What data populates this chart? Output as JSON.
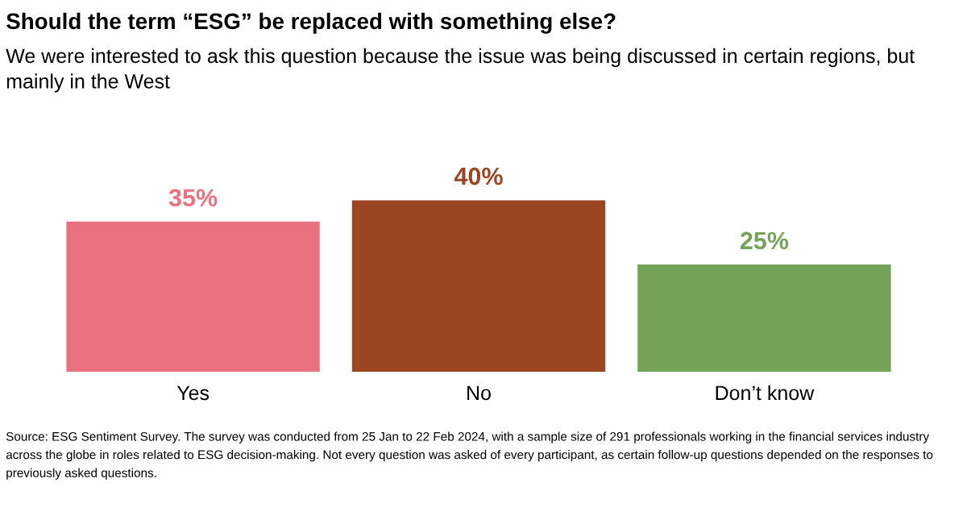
{
  "chart_data": {
    "type": "bar",
    "title": "Should the term “ESG” be replaced with something else?",
    "subtitle": "We were interested to ask this question because the issue was being discussed in certain regions, but mainly in the West",
    "categories": [
      "Yes",
      "No",
      "Don’t know"
    ],
    "values": [
      35,
      40,
      25
    ],
    "colors": [
      "#e8707f",
      "#9a4623",
      "#74a257"
    ],
    "value_labels": [
      "35%",
      "40%",
      "25%"
    ],
    "annotations": [
      "Source: ESG Sentiment Survey. The survey was conducted from 25 Jan to 22 Feb 2024, with a sample size of 291 professionals working in the financial services industry across the globe in roles related to ESG decision-making. Not every question was asked of every participant, as certain follow-up questions depended on the responses to previously asked questions."
    ]
  }
}
